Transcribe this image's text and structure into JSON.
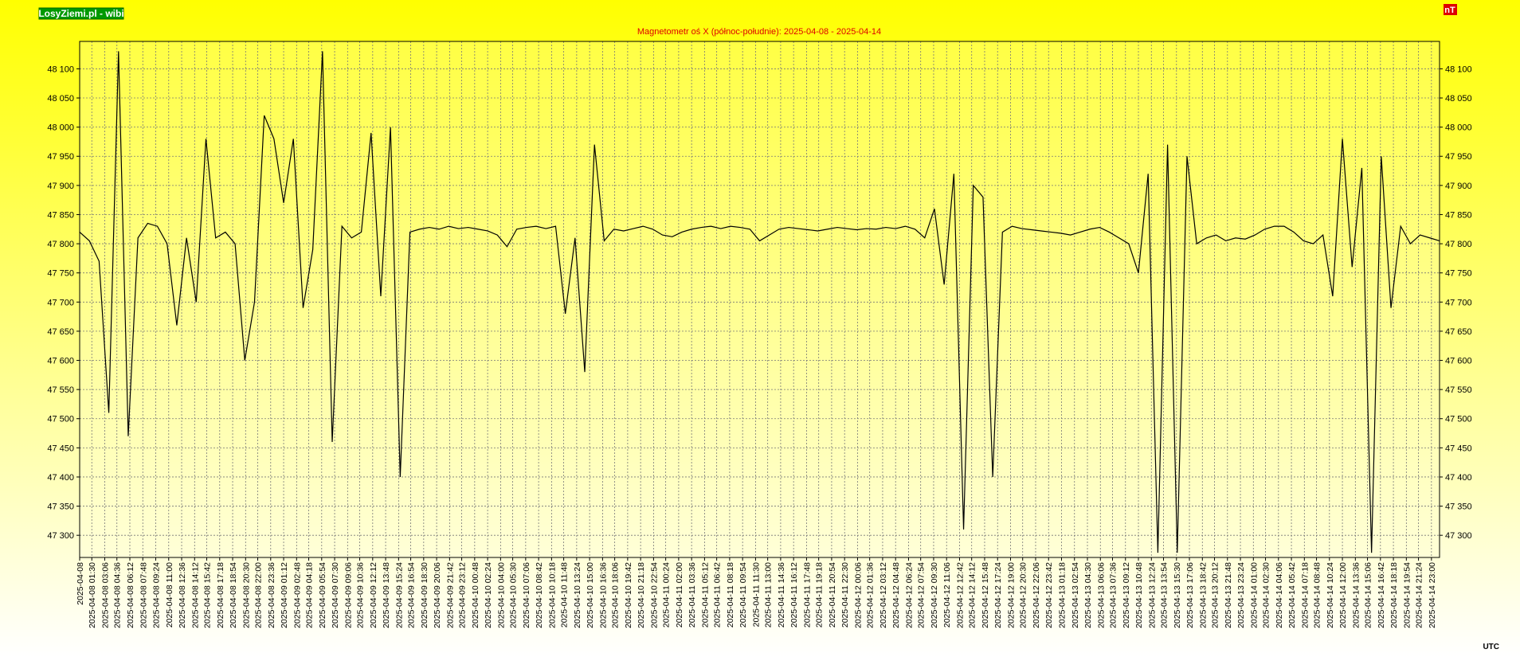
{
  "site_label": "LosyZiemi.pl - wibi",
  "unit_badge": "nT",
  "time_zone": "UTC",
  "chart_data": {
    "type": "line",
    "title": "Magnetometr oś X (północ-południe): 2025-04-08 - 2025-04-14",
    "xlim": [
      "2025-04-08 00:00",
      "2025-04-15 00:00"
    ],
    "ylim": [
      47262,
      48147
    ],
    "grid": true,
    "yticks": [
      {
        "value": 47300,
        "label": "47 300"
      },
      {
        "value": 47350,
        "label": "47 350"
      },
      {
        "value": 47400,
        "label": "47 400"
      },
      {
        "value": 47450,
        "label": "47 450"
      },
      {
        "value": 47500,
        "label": "47 500"
      },
      {
        "value": 47550,
        "label": "47 550"
      },
      {
        "value": 47600,
        "label": "47 600"
      },
      {
        "value": 47650,
        "label": "47 650"
      },
      {
        "value": 47700,
        "label": "47 700"
      },
      {
        "value": 47750,
        "label": "47 750"
      },
      {
        "value": 47800,
        "label": "47 800"
      },
      {
        "value": 47850,
        "label": "47 850"
      },
      {
        "value": 47900,
        "label": "47 900"
      },
      {
        "value": 47950,
        "label": "47 950"
      },
      {
        "value": 48000,
        "label": "48 000"
      },
      {
        "value": 48050,
        "label": "48 050"
      },
      {
        "value": 48100,
        "label": "48 100"
      }
    ],
    "xticks": [
      "2025-04-08",
      "2025-04-08 01:30",
      "2025-04-08 03:06",
      "2025-04-08 04:36",
      "2025-04-08 06:12",
      "2025-04-08 07:48",
      "2025-04-08 09:24",
      "2025-04-08 11:00",
      "2025-04-08 12:36",
      "2025-04-08 14:12",
      "2025-04-08 15:42",
      "2025-04-08 17:18",
      "2025-04-08 18:54",
      "2025-04-08 20:30",
      "2025-04-08 22:00",
      "2025-04-08 23:36",
      "2025-04-09 01:12",
      "2025-04-09 02:48",
      "2025-04-09 04:18",
      "2025-04-09 05:54",
      "2025-04-09 07:30",
      "2025-04-09 09:06",
      "2025-04-09 10:36",
      "2025-04-09 12:12",
      "2025-04-09 13:48",
      "2025-04-09 15:24",
      "2025-04-09 16:54",
      "2025-04-09 18:30",
      "2025-04-09 20:06",
      "2025-04-09 21:42",
      "2025-04-09 23:12",
      "2025-04-10 00:48",
      "2025-04-10 02:24",
      "2025-04-10 04:00",
      "2025-04-10 05:30",
      "2025-04-10 07:06",
      "2025-04-10 08:42",
      "2025-04-10 10:18",
      "2025-04-10 11:48",
      "2025-04-10 13:24",
      "2025-04-10 15:00",
      "2025-04-10 16:36",
      "2025-04-10 18:06",
      "2025-04-10 19:42",
      "2025-04-10 21:18",
      "2025-04-10 22:54",
      "2025-04-11 00:24",
      "2025-04-11 02:00",
      "2025-04-11 03:36",
      "2025-04-11 05:12",
      "2025-04-11 06:42",
      "2025-04-11 08:18",
      "2025-04-11 09:54",
      "2025-04-11 11:30",
      "2025-04-11 13:00",
      "2025-04-11 14:36",
      "2025-04-11 16:12",
      "2025-04-11 17:48",
      "2025-04-11 19:18",
      "2025-04-11 20:54",
      "2025-04-11 22:30",
      "2025-04-12 00:06",
      "2025-04-12 01:36",
      "2025-04-12 03:12",
      "2025-04-12 04:48",
      "2025-04-12 06:24",
      "2025-04-12 07:54",
      "2025-04-12 09:30",
      "2025-04-12 11:06",
      "2025-04-12 12:42",
      "2025-04-12 14:12",
      "2025-04-12 15:48",
      "2025-04-12 17:24",
      "2025-04-12 19:00",
      "2025-04-12 20:30",
      "2025-04-12 22:06",
      "2025-04-12 23:42",
      "2025-04-13 01:18",
      "2025-04-13 02:54",
      "2025-04-13 04:30",
      "2025-04-13 06:06",
      "2025-04-13 07:36",
      "2025-04-13 09:12",
      "2025-04-13 10:48",
      "2025-04-13 12:24",
      "2025-04-13 13:54",
      "2025-04-13 15:30",
      "2025-04-13 17:06",
      "2025-04-13 18:42",
      "2025-04-13 20:12",
      "2025-04-13 21:48",
      "2025-04-13 23:24",
      "2025-04-14 01:00",
      "2025-04-14 02:30",
      "2025-04-14 04:06",
      "2025-04-14 05:42",
      "2025-04-14 07:18",
      "2025-04-14 08:48",
      "2025-04-14 10:24",
      "2025-04-14 12:00",
      "2025-04-14 13:36",
      "2025-04-14 15:06",
      "2025-04-14 16:42",
      "2025-04-14 18:18",
      "2025-04-14 19:54",
      "2025-04-14 21:24",
      "2025-04-14 23:00"
    ],
    "color": "#000000",
    "values": [
      47820,
      47805,
      47770,
      47510,
      48130,
      47470,
      47810,
      47835,
      47830,
      47800,
      47660,
      47810,
      47700,
      47980,
      47810,
      47820,
      47800,
      47600,
      47700,
      48020,
      47980,
      47870,
      47980,
      47690,
      47790,
      48130,
      47460,
      47830,
      47810,
      47820,
      47990,
      47710,
      48000,
      47400,
      47820,
      47825,
      47828,
      47825,
      47830,
      47826,
      47828,
      47825,
      47822,
      47815,
      47795,
      47825,
      47828,
      47830,
      47826,
      47830,
      47680,
      47810,
      47580,
      47970,
      47805,
      47825,
      47822,
      47826,
      47830,
      47825,
      47815,
      47812,
      47820,
      47825,
      47828,
      47830,
      47826,
      47830,
      47828,
      47825,
      47805,
      47815,
      47825,
      47828,
      47826,
      47824,
      47822,
      47825,
      47828,
      47826,
      47824,
      47826,
      47825,
      47828,
      47826,
      47830,
      47825,
      47810,
      47860,
      47730,
      47920,
      47310,
      47900,
      47880,
      47400,
      47820,
      47830,
      47826,
      47824,
      47822,
      47820,
      47818,
      47815,
      47820,
      47825,
      47828,
      47820,
      47810,
      47800,
      47750,
      47920,
      47270,
      47970,
      47270,
      47950,
      47800,
      47810,
      47815,
      47805,
      47810,
      47808,
      47815,
      47825,
      47830,
      47830,
      47820,
      47805,
      47800,
      47815,
      47710,
      47980,
      47760,
      47930,
      47270,
      47950,
      47690,
      47830,
      47800,
      47815,
      47810,
      47805
    ]
  }
}
